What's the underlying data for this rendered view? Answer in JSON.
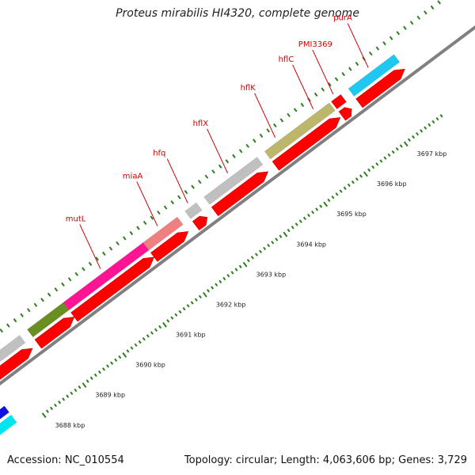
{
  "title": "Proteus mirabilis HI4320, complete genome",
  "accession": "Accession: NC_010554",
  "summary": "Topology: circular; Length: 4,063,606 bp; Genes: 3,729",
  "colors": {
    "cds": "#ff0000",
    "label": "#cc0000",
    "backbone": "#808080",
    "tick": "#2e7d1e"
  },
  "genes": [
    {
      "name": "mutL",
      "color": "#ff1493",
      "t0": 0.13,
      "t1": 0.34
    },
    {
      "name": "miaA",
      "color": "#f08080",
      "t0": 0.34,
      "t1": 0.43
    },
    {
      "name": "hfq",
      "color": "#c0c0c0",
      "t0": 0.45,
      "t1": 0.48
    },
    {
      "name": "hflX",
      "color": "#c0c0c0",
      "t0": 0.5,
      "t1": 0.64
    },
    {
      "name": "hflK",
      "color": "#bdb76b",
      "t0": 0.66,
      "t1": 0.83
    },
    {
      "name": "hflC",
      "color": "#bdb76b",
      "t0": 0.66,
      "t1": 0.83
    },
    {
      "name": "PMI3369",
      "color": "#ff0000",
      "t0": 0.835,
      "t1": 0.86
    },
    {
      "name": "purA",
      "color": "#1ec8f0",
      "t0": 0.88,
      "t1": 1.0
    }
  ],
  "extra_genes": [
    {
      "color": "#6b8e23",
      "t0": 0.035,
      "t1": 0.13
    },
    {
      "color": "#c0c0c0",
      "t0": -0.05,
      "t1": 0.015
    }
  ],
  "ticks": [
    "3688 kbp",
    "3689 kbp",
    "3690 kbp",
    "3691 kbp",
    "3692 kbp",
    "3693 kbp",
    "3694 kbp",
    "3695 kbp",
    "3696 kbp",
    "3697 kbp"
  ]
}
